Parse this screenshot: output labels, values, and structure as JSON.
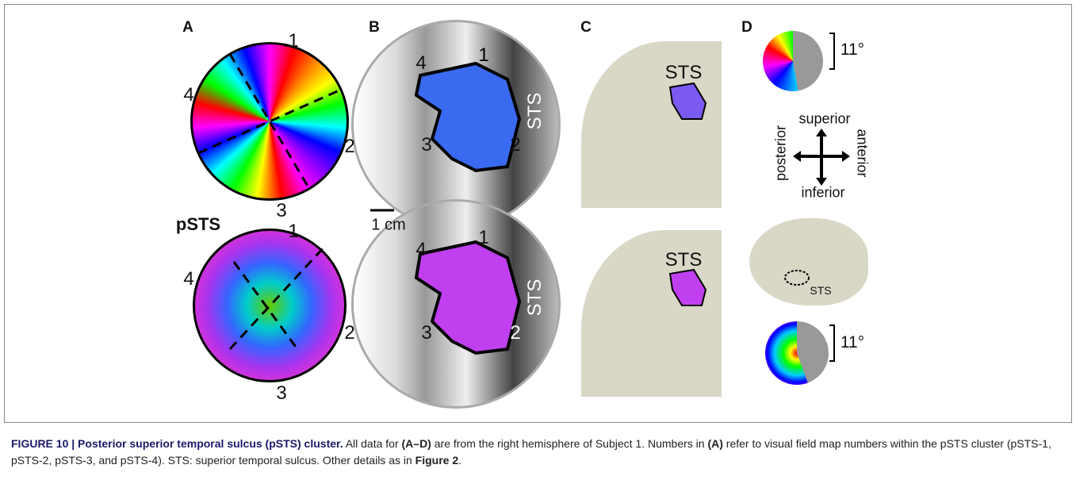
{
  "panels": {
    "A": {
      "label": "A",
      "top_labels": [
        "1",
        "2",
        "3",
        "4"
      ],
      "bottom_title": "pSTS",
      "bottom_labels": [
        "1",
        "2",
        "3",
        "4"
      ]
    },
    "B": {
      "label": "B",
      "top_labels": [
        "1",
        "2",
        "3",
        "4"
      ],
      "top_sulcus": "STS",
      "scale": "1 cm",
      "bottom_labels": [
        "1",
        "2",
        "3",
        "4"
      ],
      "bottom_sulcus": "STS"
    },
    "C": {
      "label": "C",
      "top_sulcus": "STS",
      "bottom_sulcus": "STS"
    },
    "D": {
      "label": "D",
      "top_scale": "11°",
      "directions": {
        "superior": "superior",
        "inferior": "inferior",
        "posterior": "posterior",
        "anterior": "anterior"
      },
      "brain_label": "STS",
      "bottom_scale": "11°"
    }
  },
  "caption": {
    "segments": [
      "FIGURE 10 | Posterior superior temporal sulcus (pSTS) cluster.",
      " All data for ",
      "(A–D)",
      " are from the right hemisphere of Subject 1. Numbers in ",
      "(A)",
      " refer to visual field map numbers within the pSTS cluster (pSTS-1, pSTS-2, pSTS-3, and pSTS-4). STS: superior temporal sulcus. Other details as in ",
      "Figure 2",
      "."
    ]
  }
}
